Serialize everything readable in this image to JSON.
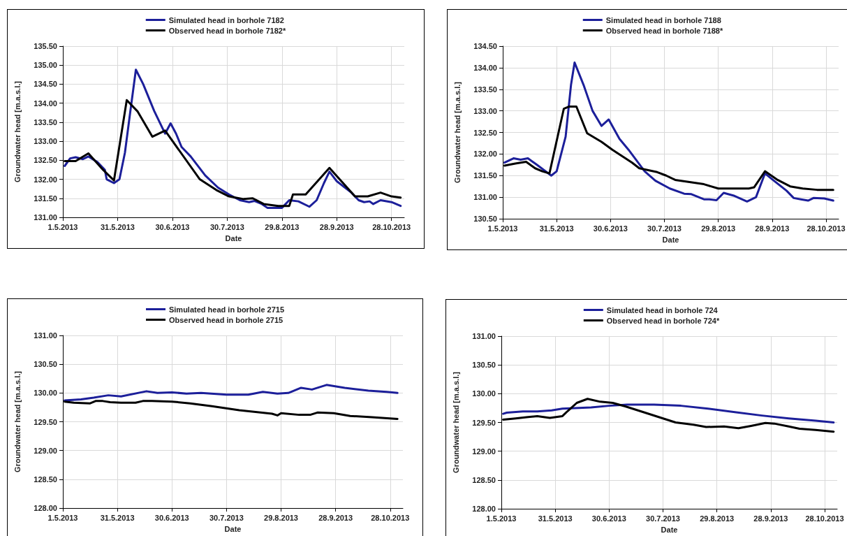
{
  "chart_data": [
    {
      "type": "line",
      "xlabel": "Date",
      "ylabel": "Groundwater head [m.a.s.l.]",
      "legend": "top",
      "grid": true,
      "xlim": [
        "2013-05-01",
        "2013-11-04"
      ],
      "xticks": [
        {
          "value": "2013-05-01",
          "label": "1.5.2013"
        },
        {
          "value": "2013-05-31",
          "label": "31.5.2013"
        },
        {
          "value": "2013-06-30",
          "label": "30.6.2013"
        },
        {
          "value": "2013-07-30",
          "label": "30.7.2013"
        },
        {
          "value": "2013-08-29",
          "label": "29.8.2013"
        },
        {
          "value": "2013-09-28",
          "label": "28.9.2013"
        },
        {
          "value": "2013-10-28",
          "label": "28.10.2013"
        }
      ],
      "ylim": [
        131,
        135.5
      ],
      "yticks": [
        {
          "value": 131,
          "label": "131.00"
        },
        {
          "value": 131.5,
          "label": "131.50"
        },
        {
          "value": 132,
          "label": "132.00"
        },
        {
          "value": 132.5,
          "label": "132.50"
        },
        {
          "value": 133,
          "label": "133.00"
        },
        {
          "value": 133.5,
          "label": "133.50"
        },
        {
          "value": 134,
          "label": "134.00"
        },
        {
          "value": 134.5,
          "label": "134.50"
        },
        {
          "value": 135,
          "label": "135.00"
        },
        {
          "value": 135.5,
          "label": "135.50"
        }
      ],
      "series": [
        {
          "name": "Simulated head in borhole 7182",
          "color": "#1c1f9a",
          "x": [
            "2013-05-02",
            "2013-05-05",
            "2013-05-08",
            "2013-05-12",
            "2013-05-15",
            "2013-05-20",
            "2013-05-24",
            "2013-05-25",
            "2013-05-29",
            "2013-06-01",
            "2013-06-04",
            "2013-06-07",
            "2013-06-10",
            "2013-06-14",
            "2013-06-20",
            "2013-06-26",
            "2013-06-29",
            "2013-07-02",
            "2013-07-05",
            "2013-07-10",
            "2013-07-18",
            "2013-07-25",
            "2013-07-31",
            "2013-08-06",
            "2013-08-11",
            "2013-08-14",
            "2013-08-18",
            "2013-08-21",
            "2013-08-26",
            "2013-08-29",
            "2013-09-02",
            "2013-09-07",
            "2013-09-13",
            "2013-09-17",
            "2013-09-21",
            "2013-09-24",
            "2013-09-28",
            "2013-10-06",
            "2013-10-10",
            "2013-10-13",
            "2013-10-16",
            "2013-10-18",
            "2013-10-22",
            "2013-10-28",
            "2013-11-02"
          ],
          "values": [
            132.35,
            132.55,
            132.58,
            132.53,
            132.6,
            132.45,
            132.25,
            132.0,
            131.9,
            132.0,
            132.7,
            133.8,
            134.88,
            134.5,
            133.8,
            133.2,
            133.47,
            133.2,
            132.85,
            132.6,
            132.1,
            131.78,
            131.6,
            131.45,
            131.4,
            131.43,
            131.35,
            131.25,
            131.25,
            131.25,
            131.45,
            131.42,
            131.28,
            131.45,
            131.9,
            132.2,
            131.95,
            131.65,
            131.45,
            131.4,
            131.42,
            131.35,
            131.45,
            131.4,
            131.3
          ]
        },
        {
          "name": "Observed head in borhole 7182*",
          "color": "#000000",
          "x": [
            "2013-05-02",
            "2013-05-08",
            "2013-05-15",
            "2013-05-23",
            "2013-05-29",
            "2013-06-05",
            "2013-06-11",
            "2013-06-19",
            "2013-06-26",
            "2013-07-15",
            "2013-07-24",
            "2013-07-31",
            "2013-08-08",
            "2013-08-13",
            "2013-08-19",
            "2013-08-27",
            "2013-09-02",
            "2013-09-04",
            "2013-09-11",
            "2013-09-24",
            "2013-10-08",
            "2013-10-15",
            "2013-10-22",
            "2013-10-28",
            "2013-11-02"
          ],
          "values": [
            132.48,
            132.48,
            132.68,
            132.25,
            131.97,
            134.08,
            133.78,
            133.12,
            133.28,
            132.0,
            131.72,
            131.55,
            131.48,
            131.5,
            131.35,
            131.3,
            131.3,
            131.6,
            131.6,
            132.3,
            131.55,
            131.55,
            131.65,
            131.55,
            131.52
          ]
        }
      ]
    },
    {
      "type": "line",
      "xlabel": "Date",
      "ylabel": "Groundwater head [m.a.s.l.]",
      "legend": "top",
      "grid": true,
      "xlim": [
        "2013-05-01",
        "2013-11-04"
      ],
      "xticks": [
        {
          "value": "2013-05-01",
          "label": "1.5.2013"
        },
        {
          "value": "2013-05-31",
          "label": "31.5.2013"
        },
        {
          "value": "2013-06-30",
          "label": "30.6.2013"
        },
        {
          "value": "2013-07-30",
          "label": "30.7.2013"
        },
        {
          "value": "2013-08-29",
          "label": "29.8.2013"
        },
        {
          "value": "2013-09-28",
          "label": "28.9.2013"
        },
        {
          "value": "2013-10-28",
          "label": "28.10.2013"
        }
      ],
      "ylim": [
        130.5,
        134.5
      ],
      "yticks": [
        {
          "value": 130.5,
          "label": "130.50"
        },
        {
          "value": 131,
          "label": "131.00"
        },
        {
          "value": 131.5,
          "label": "131.50"
        },
        {
          "value": 132,
          "label": "132.00"
        },
        {
          "value": 132.5,
          "label": "132.50"
        },
        {
          "value": 133,
          "label": "133.00"
        },
        {
          "value": 133.5,
          "label": "133.50"
        },
        {
          "value": 134,
          "label": "134.00"
        },
        {
          "value": 134.5,
          "label": "134.50"
        }
      ],
      "series": [
        {
          "name": "Simulated head in borhole 7188",
          "color": "#1c1f9a",
          "x": [
            "2013-05-02",
            "2013-05-07",
            "2013-05-11",
            "2013-05-15",
            "2013-05-20",
            "2013-05-28",
            "2013-05-31",
            "2013-06-05",
            "2013-06-08",
            "2013-06-10",
            "2013-06-15",
            "2013-06-20",
            "2013-06-25",
            "2013-06-29",
            "2013-07-05",
            "2013-07-10",
            "2013-07-19",
            "2013-07-25",
            "2013-08-02",
            "2013-08-10",
            "2013-08-14",
            "2013-08-21",
            "2013-08-24",
            "2013-08-28",
            "2013-09-01",
            "2013-09-07",
            "2013-09-14",
            "2013-09-19",
            "2013-09-24",
            "2013-09-29",
            "2013-10-06",
            "2013-10-10",
            "2013-10-14",
            "2013-10-18",
            "2013-10-21",
            "2013-10-27",
            "2013-11-01"
          ],
          "values": [
            131.8,
            131.9,
            131.87,
            131.9,
            131.75,
            131.5,
            131.6,
            132.4,
            133.6,
            134.12,
            133.6,
            133.0,
            132.65,
            132.8,
            132.35,
            132.1,
            131.6,
            131.38,
            131.2,
            131.08,
            131.07,
            130.95,
            130.95,
            130.93,
            131.1,
            131.03,
            130.9,
            131.0,
            131.55,
            131.38,
            131.15,
            130.98,
            130.95,
            130.92,
            130.98,
            130.97,
            130.92
          ]
        },
        {
          "name": "Observed head in borhole 7188*",
          "color": "#000000",
          "x": [
            "2013-05-02",
            "2013-05-08",
            "2013-05-14",
            "2013-05-19",
            "2013-05-23",
            "2013-05-27",
            "2013-06-04",
            "2013-06-07",
            "2013-06-11",
            "2013-06-17",
            "2013-06-25",
            "2013-07-01",
            "2013-07-12",
            "2013-07-16",
            "2013-07-26",
            "2013-07-31",
            "2013-08-05",
            "2013-08-13",
            "2013-08-21",
            "2013-08-29",
            "2013-09-08",
            "2013-09-15",
            "2013-09-18",
            "2013-09-24",
            "2013-10-01",
            "2013-10-08",
            "2013-10-15",
            "2013-10-23",
            "2013-11-01"
          ],
          "values": [
            131.73,
            131.78,
            131.82,
            131.67,
            131.6,
            131.55,
            133.05,
            133.1,
            133.1,
            132.48,
            132.28,
            132.1,
            131.8,
            131.67,
            131.58,
            131.5,
            131.4,
            131.35,
            131.3,
            131.2,
            131.2,
            131.2,
            131.23,
            131.6,
            131.4,
            131.25,
            131.2,
            131.17,
            131.17
          ]
        }
      ]
    },
    {
      "type": "line",
      "xlabel": "Date",
      "ylabel": "Groundwater head [m.a.s.l.]",
      "legend": "top",
      "grid": true,
      "xlim": [
        "2013-05-01",
        "2013-11-04"
      ],
      "xticks": [
        {
          "value": "2013-05-01",
          "label": "1.5.2013"
        },
        {
          "value": "2013-05-31",
          "label": "31.5.2013"
        },
        {
          "value": "2013-06-30",
          "label": "30.6.2013"
        },
        {
          "value": "2013-07-30",
          "label": "30.7.2013"
        },
        {
          "value": "2013-08-29",
          "label": "29.8.2013"
        },
        {
          "value": "2013-09-28",
          "label": "28.9.2013"
        },
        {
          "value": "2013-10-28",
          "label": "28.10.2013"
        }
      ],
      "ylim": [
        128,
        131
      ],
      "yticks": [
        {
          "value": 128,
          "label": "128.00"
        },
        {
          "value": 128.5,
          "label": "128.50"
        },
        {
          "value": 129,
          "label": "129.00"
        },
        {
          "value": 129.5,
          "label": "129.50"
        },
        {
          "value": 130,
          "label": "130.00"
        },
        {
          "value": 130.5,
          "label": "130.50"
        },
        {
          "value": 131,
          "label": "131.00"
        }
      ],
      "series": [
        {
          "name": "Simulated head in borhole 2715",
          "color": "#1c1f9a",
          "x": [
            "2013-05-02",
            "2013-05-11",
            "2013-05-18",
            "2013-05-26",
            "2013-06-02",
            "2013-06-16",
            "2013-06-22",
            "2013-06-30",
            "2013-07-08",
            "2013-07-16",
            "2013-07-30",
            "2013-08-11",
            "2013-08-19",
            "2013-08-27",
            "2013-09-02",
            "2013-09-09",
            "2013-09-15",
            "2013-09-23",
            "2013-10-03",
            "2013-10-16",
            "2013-10-26",
            "2013-11-01"
          ],
          "values": [
            129.87,
            129.89,
            129.92,
            129.96,
            129.94,
            130.03,
            130.0,
            130.01,
            129.99,
            130.0,
            129.97,
            129.97,
            130.02,
            129.99,
            130.0,
            130.09,
            130.06,
            130.14,
            130.09,
            130.04,
            130.02,
            130.0
          ]
        },
        {
          "name": "Observed head in borhole 2715",
          "color": "#000000",
          "x": [
            "2013-05-02",
            "2013-05-07",
            "2013-05-16",
            "2013-05-19",
            "2013-05-23",
            "2013-05-27",
            "2013-06-02",
            "2013-06-10",
            "2013-06-14",
            "2013-06-19",
            "2013-06-30",
            "2013-07-10",
            "2013-07-22",
            "2013-08-06",
            "2013-08-15",
            "2013-08-24",
            "2013-08-27",
            "2013-08-29",
            "2013-09-08",
            "2013-09-14",
            "2013-09-18",
            "2013-09-27",
            "2013-10-06",
            "2013-10-18",
            "2013-11-01"
          ],
          "values": [
            129.85,
            129.83,
            129.82,
            129.86,
            129.86,
            129.84,
            129.83,
            129.83,
            129.86,
            129.86,
            129.85,
            129.82,
            129.77,
            129.7,
            129.67,
            129.64,
            129.61,
            129.65,
            129.62,
            129.62,
            129.66,
            129.65,
            129.6,
            129.58,
            129.55
          ]
        }
      ]
    },
    {
      "type": "line",
      "xlabel": "Date",
      "ylabel": "Groundwater head [m.a.s.l.]",
      "legend": "top",
      "grid": true,
      "xlim": [
        "2013-05-01",
        "2013-11-04"
      ],
      "xticks": [
        {
          "value": "2013-05-01",
          "label": "1.5.2013"
        },
        {
          "value": "2013-05-31",
          "label": "31.5.2013"
        },
        {
          "value": "2013-06-30",
          "label": "30.6.2013"
        },
        {
          "value": "2013-07-30",
          "label": "30.7.2013"
        },
        {
          "value": "2013-08-29",
          "label": "29.8.2013"
        },
        {
          "value": "2013-09-28",
          "label": "28.9.2013"
        },
        {
          "value": "2013-10-28",
          "label": "28.10.2013"
        }
      ],
      "ylim": [
        128,
        131
      ],
      "yticks": [
        {
          "value": 128,
          "label": "128.00"
        },
        {
          "value": 128.5,
          "label": "128.50"
        },
        {
          "value": 129,
          "label": "129.00"
        },
        {
          "value": 129.5,
          "label": "129.50"
        },
        {
          "value": 130,
          "label": "130.00"
        },
        {
          "value": 130.5,
          "label": "130.50"
        },
        {
          "value": 131,
          "label": "131.00"
        }
      ],
      "series": [
        {
          "name": "Simulated head in borhole 724",
          "color": "#1c1f9a",
          "x": [
            "2013-05-02",
            "2013-05-04",
            "2013-05-13",
            "2013-05-21",
            "2013-05-29",
            "2013-06-04",
            "2013-06-20",
            "2013-06-30",
            "2013-07-10",
            "2013-07-25",
            "2013-08-09",
            "2013-08-24",
            "2013-09-08",
            "2013-09-23",
            "2013-10-08",
            "2013-10-23",
            "2013-11-02"
          ],
          "values": [
            129.65,
            129.67,
            129.69,
            129.69,
            129.71,
            129.74,
            129.76,
            129.79,
            129.81,
            129.81,
            129.79,
            129.74,
            129.68,
            129.62,
            129.57,
            129.53,
            129.5
          ]
        },
        {
          "name": "Observed head in borhole 724*",
          "color": "#000000",
          "x": [
            "2013-05-02",
            "2013-05-09",
            "2013-05-15",
            "2013-05-21",
            "2013-05-28",
            "2013-06-04",
            "2013-06-07",
            "2013-06-12",
            "2013-06-18",
            "2013-06-25",
            "2013-07-02",
            "2013-07-09",
            "2013-07-20",
            "2013-07-30",
            "2013-08-06",
            "2013-08-16",
            "2013-08-23",
            "2013-09-02",
            "2013-09-10",
            "2013-09-17",
            "2013-09-25",
            "2013-09-30",
            "2013-10-08",
            "2013-10-14",
            "2013-10-23",
            "2013-11-02"
          ],
          "values": [
            129.55,
            129.57,
            129.59,
            129.61,
            129.58,
            129.61,
            129.7,
            129.84,
            129.91,
            129.86,
            129.84,
            129.78,
            129.67,
            129.57,
            129.5,
            129.46,
            129.42,
            129.43,
            129.4,
            129.44,
            129.49,
            129.48,
            129.43,
            129.39,
            129.37,
            129.34
          ]
        }
      ]
    }
  ]
}
